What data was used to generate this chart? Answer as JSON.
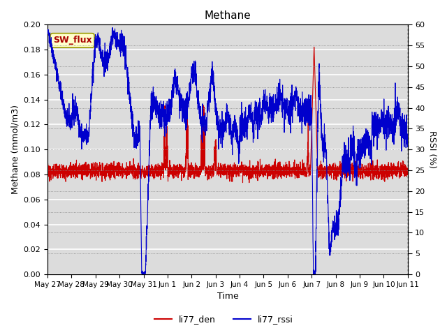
{
  "title": "Methane",
  "xlabel": "Time",
  "ylabel_left": "Methane (mmol/m3)",
  "ylabel_right": "RSSI (%)",
  "ylim_left": [
    0.0,
    0.2
  ],
  "ylim_right": [
    0,
    60
  ],
  "yticks_left": [
    0.0,
    0.02,
    0.04,
    0.06,
    0.08,
    0.1,
    0.12,
    0.14,
    0.16,
    0.18,
    0.2
  ],
  "yticks_right": [
    0,
    5,
    10,
    15,
    20,
    25,
    30,
    35,
    40,
    45,
    50,
    55,
    60
  ],
  "color_den": "#cc0000",
  "color_rssi": "#0000cc",
  "bg_color": "#dcdcdc",
  "fig_bg": "#ffffff",
  "annotation_text": "SW_flux",
  "annotation_bg": "#ffffcc",
  "annotation_edge": "#999900",
  "annotation_text_color": "#aa0000",
  "legend_entries": [
    "li77_den",
    "li77_rssi"
  ],
  "xtick_labels": [
    "May 27",
    "May 28",
    "May 29",
    "May 30",
    "May 31",
    "Jun 1",
    "Jun 2",
    "Jun 3",
    "Jun 4",
    "Jun 5",
    "Jun 6",
    "Jun 7",
    "Jun 8",
    "Jun 9",
    "Jun 10",
    "Jun 11"
  ]
}
